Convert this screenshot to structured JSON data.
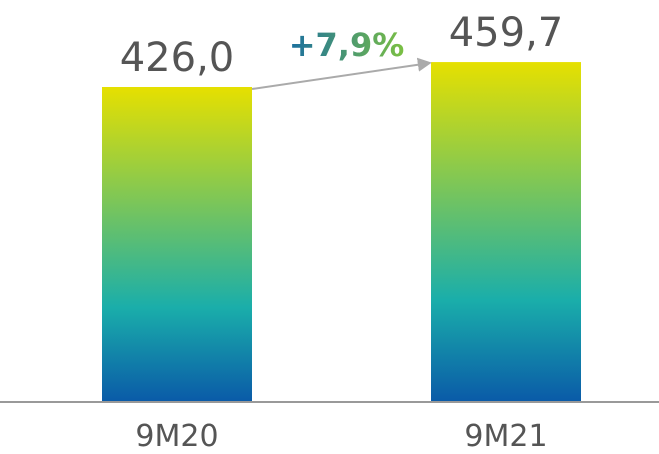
{
  "chart_data": {
    "type": "bar",
    "categories": [
      "9M20",
      "9M21"
    ],
    "values": [
      426.0,
      459.7
    ],
    "value_labels": [
      "426,0",
      "459,7"
    ],
    "annotation": {
      "text": "+7,9%",
      "kind": "growth-arrow",
      "from": "9M20",
      "to": "9M21"
    },
    "title": "",
    "xlabel": "",
    "ylabel": "",
    "grid": false,
    "legend": "none"
  },
  "colors": {
    "bar_gradient_top": "#e6e000",
    "bar_gradient_mid": "#1aaeaa",
    "bar_gradient_bottom": "#0a5aa8",
    "baseline": "#999999",
    "arrow": "#aaaaaa",
    "growth_text_start": "#1a6fa0",
    "growth_text_end": "#7bc043",
    "label_text": "#555555"
  }
}
